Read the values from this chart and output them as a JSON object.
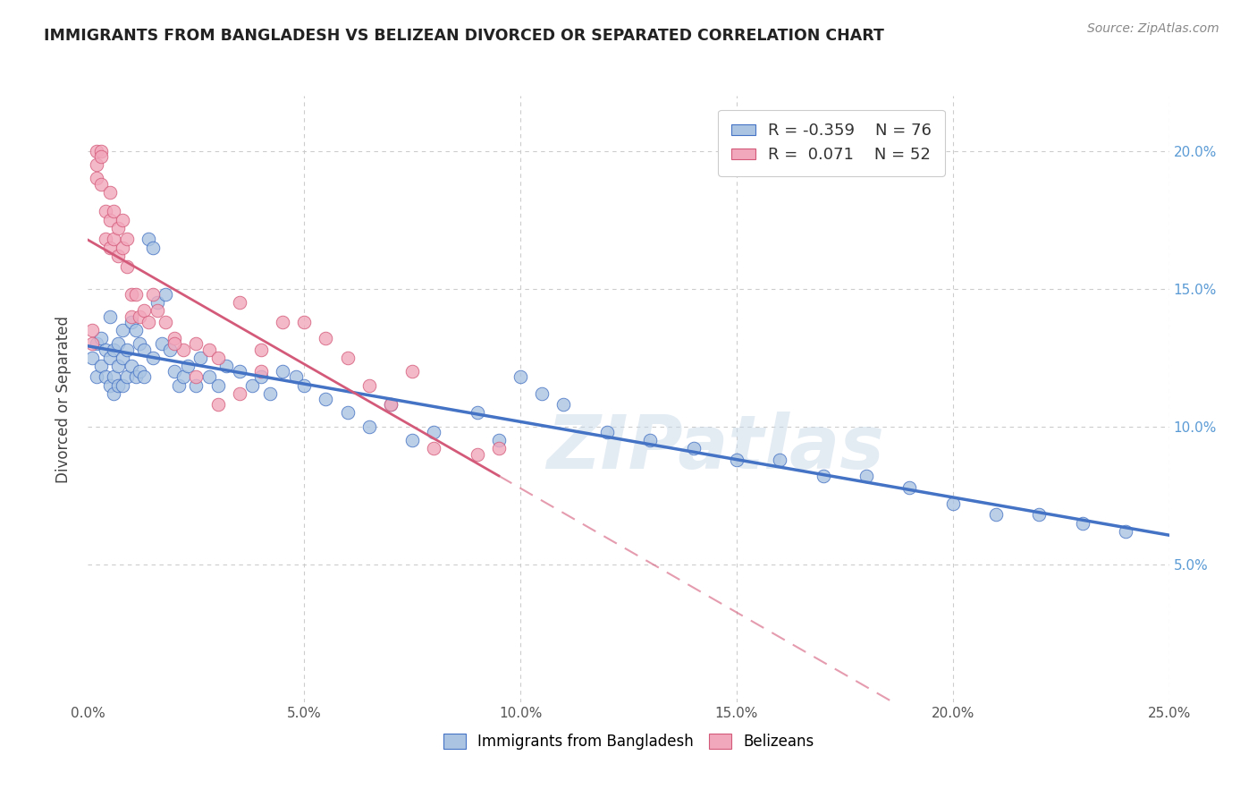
{
  "title": "IMMIGRANTS FROM BANGLADESH VS BELIZEAN DIVORCED OR SEPARATED CORRELATION CHART",
  "source": "Source: ZipAtlas.com",
  "ylabel": "Divorced or Separated",
  "xlim": [
    0.0,
    0.25
  ],
  "ylim": [
    0.0,
    0.22
  ],
  "xticks": [
    0.0,
    0.05,
    0.1,
    0.15,
    0.2,
    0.25
  ],
  "yticks": [
    0.05,
    0.1,
    0.15,
    0.2
  ],
  "ytick_labels_right": [
    "5.0%",
    "10.0%",
    "15.0%",
    "20.0%"
  ],
  "xtick_labels": [
    "0.0%",
    "5.0%",
    "10.0%",
    "15.0%",
    "20.0%",
    "25.0%"
  ],
  "legend_blue_r": "-0.359",
  "legend_blue_n": "76",
  "legend_pink_r": "0.071",
  "legend_pink_n": "52",
  "blue_color": "#aac4e2",
  "pink_color": "#f2a8bc",
  "blue_line_color": "#4472c4",
  "pink_line_color": "#d45a7a",
  "watermark": "ZIPatlas",
  "blue_scatter_x": [
    0.001,
    0.002,
    0.002,
    0.003,
    0.003,
    0.004,
    0.004,
    0.005,
    0.005,
    0.005,
    0.006,
    0.006,
    0.006,
    0.007,
    0.007,
    0.007,
    0.008,
    0.008,
    0.008,
    0.009,
    0.009,
    0.01,
    0.01,
    0.011,
    0.011,
    0.012,
    0.012,
    0.013,
    0.013,
    0.014,
    0.015,
    0.015,
    0.016,
    0.017,
    0.018,
    0.019,
    0.02,
    0.021,
    0.022,
    0.023,
    0.025,
    0.026,
    0.028,
    0.03,
    0.032,
    0.035,
    0.038,
    0.04,
    0.042,
    0.045,
    0.048,
    0.05,
    0.055,
    0.06,
    0.065,
    0.07,
    0.075,
    0.08,
    0.09,
    0.095,
    0.1,
    0.105,
    0.11,
    0.12,
    0.13,
    0.14,
    0.15,
    0.16,
    0.17,
    0.18,
    0.19,
    0.2,
    0.21,
    0.22,
    0.23,
    0.24
  ],
  "blue_scatter_y": [
    0.125,
    0.118,
    0.13,
    0.122,
    0.132,
    0.128,
    0.118,
    0.14,
    0.125,
    0.115,
    0.128,
    0.118,
    0.112,
    0.13,
    0.122,
    0.115,
    0.135,
    0.125,
    0.115,
    0.128,
    0.118,
    0.138,
    0.122,
    0.135,
    0.118,
    0.13,
    0.12,
    0.128,
    0.118,
    0.168,
    0.165,
    0.125,
    0.145,
    0.13,
    0.148,
    0.128,
    0.12,
    0.115,
    0.118,
    0.122,
    0.115,
    0.125,
    0.118,
    0.115,
    0.122,
    0.12,
    0.115,
    0.118,
    0.112,
    0.12,
    0.118,
    0.115,
    0.11,
    0.105,
    0.1,
    0.108,
    0.095,
    0.098,
    0.105,
    0.095,
    0.118,
    0.112,
    0.108,
    0.098,
    0.095,
    0.092,
    0.088,
    0.088,
    0.082,
    0.082,
    0.078,
    0.072,
    0.068,
    0.068,
    0.065,
    0.062
  ],
  "pink_scatter_x": [
    0.001,
    0.001,
    0.002,
    0.002,
    0.002,
    0.003,
    0.003,
    0.003,
    0.004,
    0.004,
    0.005,
    0.005,
    0.005,
    0.006,
    0.006,
    0.007,
    0.007,
    0.008,
    0.008,
    0.009,
    0.009,
    0.01,
    0.01,
    0.011,
    0.012,
    0.013,
    0.014,
    0.015,
    0.016,
    0.018,
    0.02,
    0.022,
    0.025,
    0.028,
    0.03,
    0.035,
    0.04,
    0.045,
    0.05,
    0.055,
    0.06,
    0.065,
    0.07,
    0.075,
    0.08,
    0.09,
    0.095,
    0.02,
    0.025,
    0.03,
    0.035,
    0.04
  ],
  "pink_scatter_y": [
    0.135,
    0.13,
    0.195,
    0.2,
    0.19,
    0.2,
    0.198,
    0.188,
    0.178,
    0.168,
    0.185,
    0.175,
    0.165,
    0.178,
    0.168,
    0.172,
    0.162,
    0.175,
    0.165,
    0.168,
    0.158,
    0.148,
    0.14,
    0.148,
    0.14,
    0.142,
    0.138,
    0.148,
    0.142,
    0.138,
    0.132,
    0.128,
    0.13,
    0.128,
    0.125,
    0.145,
    0.128,
    0.138,
    0.138,
    0.132,
    0.125,
    0.115,
    0.108,
    0.12,
    0.092,
    0.09,
    0.092,
    0.13,
    0.118,
    0.108,
    0.112,
    0.12
  ]
}
